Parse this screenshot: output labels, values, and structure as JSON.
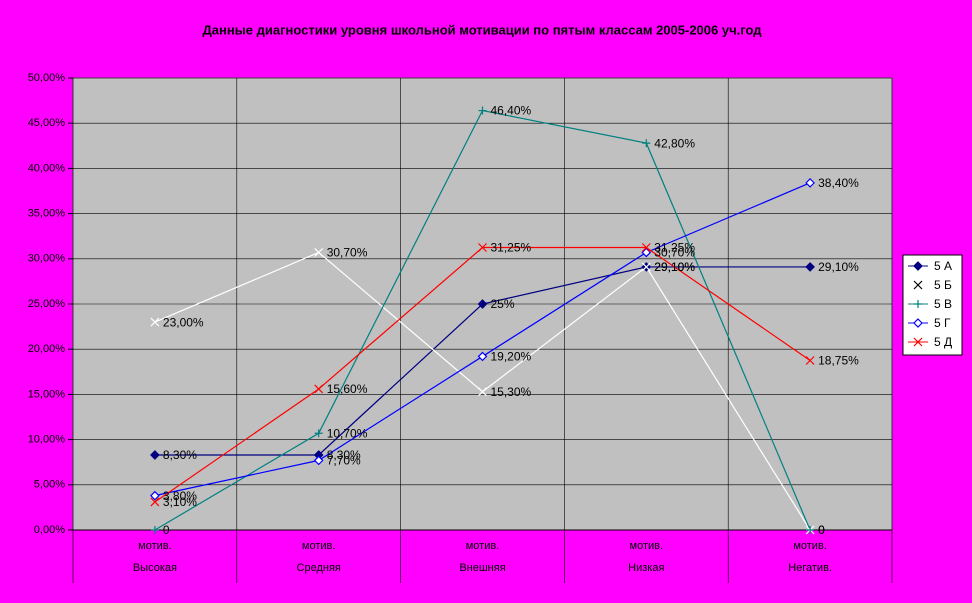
{
  "chart_data": {
    "type": "line",
    "title": "Данные диагностики уровня школьной мотивации по пятым классам 2005-2006 уч.год",
    "categories": [
      "мотив.\nВысокая",
      "мотив.\nСредняя",
      "мотив.\nВнешняя",
      "мотив.\nНизкая",
      "мотив.\nНегатив."
    ],
    "ylim": [
      0,
      50
    ],
    "yticks": [
      {
        "value": 0,
        "label": "0,00%"
      },
      {
        "value": 5,
        "label": "5,00%"
      },
      {
        "value": 10,
        "label": "10,00%"
      },
      {
        "value": 15,
        "label": "15,00%"
      },
      {
        "value": 20,
        "label": "20,00%"
      },
      {
        "value": 25,
        "label": "25,00%"
      },
      {
        "value": 30,
        "label": "30,00%"
      },
      {
        "value": 35,
        "label": "35,00%"
      },
      {
        "value": 40,
        "label": "40,00%"
      },
      {
        "value": 45,
        "label": "45,00%"
      },
      {
        "value": 50,
        "label": "50,00%"
      }
    ],
    "grid": true,
    "legend": "right",
    "series": [
      {
        "name": "5 А",
        "color": "#000080",
        "marker": "diamond",
        "values": [
          8.3,
          8.3,
          25,
          29.1,
          29.1
        ],
        "value_labels": [
          "8,30%",
          "8,30%",
          "25%",
          "29,10%",
          "29,10%"
        ]
      },
      {
        "name": "5 Б",
        "color": "#ffffff",
        "marker": "x",
        "values": [
          23,
          30.7,
          15.3,
          29.1,
          0
        ],
        "value_labels": [
          "23,00%",
          "30,70%",
          "15,30%",
          "29,10%",
          "0"
        ]
      },
      {
        "name": "5 В",
        "color": "#008080",
        "marker": "plus",
        "values": [
          0,
          10.7,
          46.4,
          42.8,
          0
        ],
        "value_labels": [
          "0",
          "10,70%",
          "46,40%",
          "42,80%",
          "0"
        ]
      },
      {
        "name": "5 Г",
        "color": "#0000ff",
        "marker": "open-diamond",
        "values": [
          3.8,
          7.7,
          19.2,
          30.7,
          38.4
        ],
        "value_labels": [
          "3,80%",
          "7,70%",
          "19,20%",
          "30,70%",
          "38,40%"
        ]
      },
      {
        "name": "5 Д",
        "color": "#ff0000",
        "marker": "x",
        "values": [
          3.1,
          15.6,
          31.25,
          31.25,
          18.75
        ],
        "value_labels": [
          "3,10%",
          "15,60%",
          "31,25%",
          "31,25%",
          "18,75%"
        ]
      }
    ]
  }
}
